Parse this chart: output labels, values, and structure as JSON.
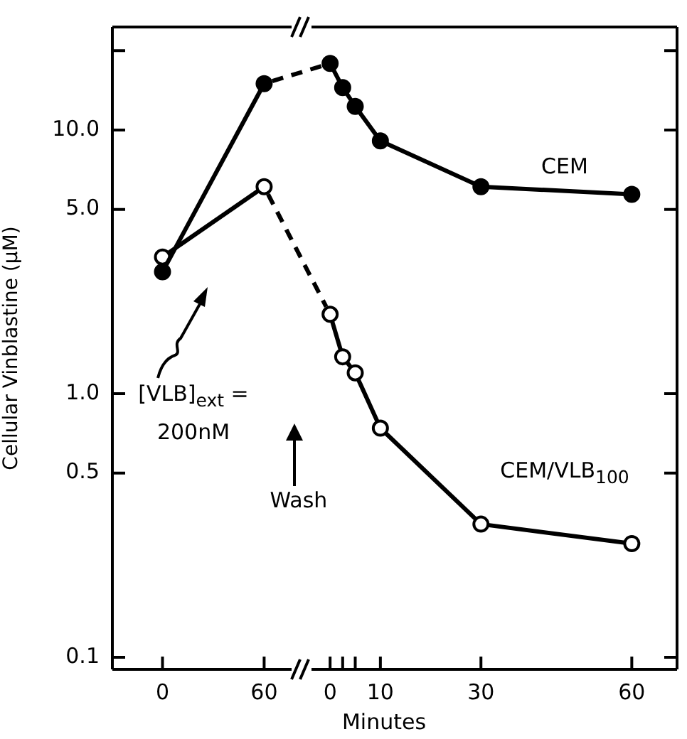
{
  "chart_data": [
    {
      "type": "line",
      "ylabel": "Cellular Vinblastine (μM)",
      "log": "y",
      "marker": "circle",
      "line_style": "solid",
      "x": [
        0,
        60
      ],
      "xlim": [
        -29.6,
        76.2
      ],
      "xticks": [
        0,
        60
      ],
      "ylim": [
        0.09,
        24.6
      ],
      "yticks": [
        {
          "value": 0.1,
          "label": "0.1"
        },
        {
          "value": 0.5,
          "label": "0.5"
        },
        {
          "value": 1,
          "label": "1.0"
        },
        {
          "value": 5,
          "label": "5.0"
        },
        {
          "value": 10,
          "label": "10.0"
        },
        {
          "value": 20,
          "label": null
        }
      ],
      "series": [
        {
          "color": "#000000",
          "values": [
            2.9,
            15.0
          ]
        },
        {
          "color": "#000000",
          "values": [
            3.3,
            6.1
          ]
        }
      ],
      "annotations": [
        "[VLB]$_{ext}$ = 200nM",
        "Wash"
      ]
    },
    {
      "type": "line",
      "xlabel": "Minutes",
      "log": "y",
      "marker": "circle",
      "line_style": "solid",
      "tick_labels": "x",
      "x": [
        0,
        2.5,
        5,
        10,
        30,
        60
      ],
      "xlim": [
        -3.7,
        69
      ],
      "xticks": [
        0,
        {
          "value": 2.5,
          "label": null
        },
        {
          "value": 5,
          "label": null
        },
        10,
        30,
        60
      ],
      "ylim": [
        0.09,
        24.6
      ],
      "yticks": [
        {
          "value": 0.1,
          "label": null
        },
        {
          "value": 0.5,
          "label": null
        },
        {
          "value": 1,
          "label": null
        },
        {
          "value": 5,
          "label": null
        },
        {
          "value": 10,
          "label": null
        },
        {
          "value": 20,
          "label": null
        }
      ],
      "series": [
        {
          "name": "CEM",
          "color": "#000000",
          "values": [
            17.9,
            14.5,
            12.3,
            9.1,
            6.1,
            5.7
          ]
        },
        {
          "name": "CEM/VLB$_{100}$",
          "color": "#000000",
          "values": [
            2.0,
            1.38,
            1.2,
            0.74,
            0.32,
            0.27
          ]
        }
      ]
    }
  ]
}
